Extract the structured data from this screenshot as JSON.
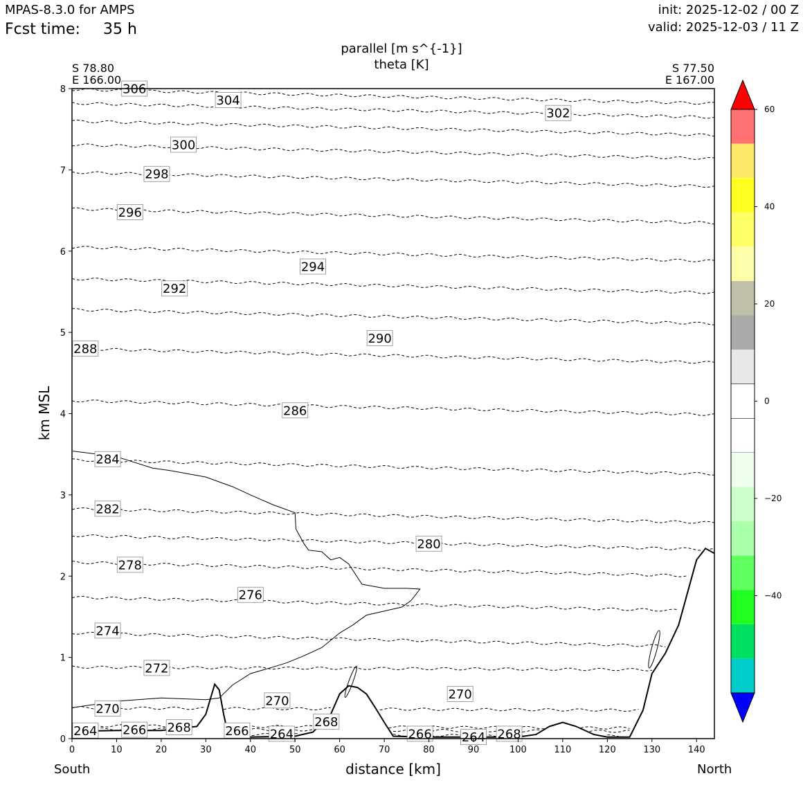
{
  "header": {
    "model": "MPAS-8.3.0 for AMPS",
    "fcst_label": "Fcst time:",
    "fcst_value": "35 h",
    "init": "init: 2025-12-02 / 00 Z",
    "valid": "valid: 2025-12-03 / 11 Z"
  },
  "endpoints": {
    "left_lat": "S 78.80",
    "left_lon": "E 166.00",
    "right_lat": "S 77.50",
    "right_lon": "E 167.00",
    "left_dir": "South",
    "right_dir": "North"
  },
  "colors": {
    "colorbar": [
      "#0000ff",
      "#00cccc",
      "#00e060",
      "#20ff20",
      "#60ff60",
      "#aaffaa",
      "#ccffcc",
      "#eeffee",
      "#ffffff",
      "#ffffff",
      "#e8e8e8",
      "#aaaaaa",
      "#c0c0a8",
      "#ffffaa",
      "#ffff66",
      "#ffff22",
      "#ffe866",
      "#ff7070",
      "#ff0000"
    ]
  },
  "chart_data": {
    "type": "cross-section",
    "title": "parallel [m s^{-1}]",
    "subtitle": "theta [K]",
    "xlabel": "distance [km]",
    "ylabel": "km MSL",
    "xlim": [
      0,
      144
    ],
    "ylim": [
      0,
      8
    ],
    "xticks": [
      0,
      10,
      20,
      30,
      40,
      50,
      60,
      70,
      80,
      90,
      100,
      110,
      120,
      130,
      140
    ],
    "yticks": [
      0,
      1,
      2,
      3,
      4,
      5,
      6,
      7,
      8
    ],
    "colorbar": {
      "min": -60,
      "max": 60,
      "step": 6.67,
      "ticks": [
        60,
        40,
        20,
        0,
        -20,
        -40
      ],
      "tick_labels": [
        "60",
        "40",
        "20",
        "0",
        "−20",
        "−40"
      ]
    },
    "terrain": [
      [
        0,
        0.09
      ],
      [
        10,
        0.1
      ],
      [
        20,
        0.1
      ],
      [
        28,
        0.15
      ],
      [
        30,
        0.3
      ],
      [
        32,
        0.67
      ],
      [
        33,
        0.6
      ],
      [
        34,
        0.3
      ],
      [
        35,
        0.05
      ],
      [
        40,
        0.02
      ],
      [
        50,
        0.03
      ],
      [
        54,
        0.08
      ],
      [
        58,
        0.3
      ],
      [
        60,
        0.55
      ],
      [
        62,
        0.65
      ],
      [
        64,
        0.63
      ],
      [
        66,
        0.55
      ],
      [
        68,
        0.38
      ],
      [
        70,
        0.2
      ],
      [
        72,
        0.03
      ],
      [
        80,
        0.02
      ],
      [
        100,
        0.02
      ],
      [
        104,
        0.05
      ],
      [
        107,
        0.15
      ],
      [
        110,
        0.2
      ],
      [
        113,
        0.15
      ],
      [
        117,
        0.05
      ],
      [
        120,
        0.02
      ],
      [
        125,
        0.02
      ],
      [
        128,
        0.35
      ],
      [
        130,
        0.8
      ],
      [
        133,
        1.05
      ],
      [
        136,
        1.4
      ],
      [
        138,
        1.8
      ],
      [
        140,
        2.2
      ],
      [
        142,
        2.34
      ],
      [
        144,
        2.28
      ]
    ],
    "wind_zero_contour": [
      [
        0,
        3.54
      ],
      [
        10,
        3.47
      ],
      [
        18,
        3.33
      ],
      [
        22,
        3.3
      ],
      [
        30,
        3.22
      ],
      [
        36,
        3.1
      ],
      [
        40,
        3.0
      ],
      [
        45,
        2.88
      ],
      [
        50,
        2.78
      ],
      [
        50.2,
        2.58
      ],
      [
        52,
        2.4
      ],
      [
        53,
        2.32
      ],
      [
        56,
        2.3
      ],
      [
        58,
        2.2
      ],
      [
        60,
        2.23
      ],
      [
        62,
        2.15
      ],
      [
        65,
        1.9
      ],
      [
        70,
        1.85
      ],
      [
        75,
        1.85
      ],
      [
        78,
        1.84
      ],
      [
        76,
        1.7
      ],
      [
        74,
        1.62
      ],
      [
        70,
        1.57
      ],
      [
        66,
        1.52
      ],
      [
        63,
        1.4
      ],
      [
        60,
        1.3
      ],
      [
        56,
        1.12
      ],
      [
        52,
        1.02
      ],
      [
        48,
        0.93
      ],
      [
        45,
        0.88
      ],
      [
        40,
        0.8
      ],
      [
        36,
        0.66
      ],
      [
        33,
        0.5
      ],
      [
        30,
        0.48
      ],
      [
        25,
        0.49
      ],
      [
        20,
        0.5
      ],
      [
        10,
        0.46
      ],
      [
        0,
        0.38
      ]
    ],
    "theta_contours": [
      {
        "theta": 264,
        "label": "264",
        "y": 0.06,
        "label_positions": [
          [
            3,
            0.1
          ],
          [
            47,
            0.06
          ],
          [
            90,
            0.02
          ]
        ]
      },
      {
        "theta": 266,
        "label": "266",
        "y": 0.12,
        "label_positions": [
          [
            14,
            0.11
          ],
          [
            37,
            0.1
          ],
          [
            78,
            0.06
          ]
        ]
      },
      {
        "theta": 268,
        "label": "268",
        "y": 0.16,
        "label_positions": [
          [
            24,
            0.14
          ],
          [
            57,
            0.21
          ],
          [
            98,
            0.06
          ]
        ]
      },
      {
        "theta": 270,
        "label": "270",
        "y": 0.38,
        "label_positions": [
          [
            8,
            0.37
          ],
          [
            46,
            0.47
          ],
          [
            87,
            0.55
          ]
        ]
      },
      {
        "theta": 272,
        "label": "272",
        "y": 0.88,
        "label_positions": [
          [
            19,
            0.87
          ]
        ]
      },
      {
        "theta": 274,
        "label": "274",
        "y": 1.3,
        "label_positions": [
          [
            8,
            1.33
          ]
        ]
      },
      {
        "theta": 276,
        "label": "276",
        "y": 1.74,
        "label_positions": [
          [
            40,
            1.77
          ]
        ]
      },
      {
        "theta": 278,
        "label": "278",
        "y": 2.17,
        "label_positions": [
          [
            13,
            2.14
          ]
        ]
      },
      {
        "theta": 280,
        "label": "280",
        "y": 2.5,
        "label_positions": [
          [
            80,
            2.4
          ]
        ]
      },
      {
        "theta": 282,
        "label": "282",
        "y": 2.83,
        "label_positions": [
          [
            8,
            2.83
          ]
        ]
      },
      {
        "theta": 284,
        "label": "284",
        "y": 3.43,
        "label_positions": [
          [
            8,
            3.44
          ]
        ]
      },
      {
        "theta": 286,
        "label": "286",
        "y": 4.16,
        "label_positions": [
          [
            50,
            4.04
          ]
        ]
      },
      {
        "theta": 288,
        "label": "288",
        "y": 4.8,
        "label_positions": [
          [
            3,
            4.8
          ]
        ]
      },
      {
        "theta": 290,
        "label": "290",
        "y": 5.28,
        "label_positions": [
          [
            69,
            4.93
          ]
        ]
      },
      {
        "theta": 292,
        "label": "292",
        "y": 5.66,
        "label_positions": [
          [
            23,
            5.54
          ]
        ]
      },
      {
        "theta": 294,
        "label": "294",
        "y": 6.05,
        "label_positions": [
          [
            54,
            5.81
          ]
        ]
      },
      {
        "theta": 296,
        "label": "296",
        "y": 6.52,
        "label_positions": [
          [
            13,
            6.48
          ]
        ]
      },
      {
        "theta": 298,
        "label": "298",
        "y": 6.97,
        "label_positions": [
          [
            19,
            6.95
          ]
        ]
      },
      {
        "theta": 300,
        "label": "300",
        "y": 7.31,
        "label_positions": [
          [
            25,
            7.31
          ]
        ]
      },
      {
        "theta": 302,
        "label": "302",
        "y": 7.6,
        "label_positions": [
          [
            109,
            7.7
          ]
        ]
      },
      {
        "theta": 304,
        "label": "304",
        "y": 7.82,
        "label_positions": [
          [
            35,
            7.86
          ]
        ]
      },
      {
        "theta": 306,
        "label": "306",
        "y": 7.99,
        "label_positions": [
          [
            14,
            8.0
          ]
        ]
      }
    ]
  }
}
